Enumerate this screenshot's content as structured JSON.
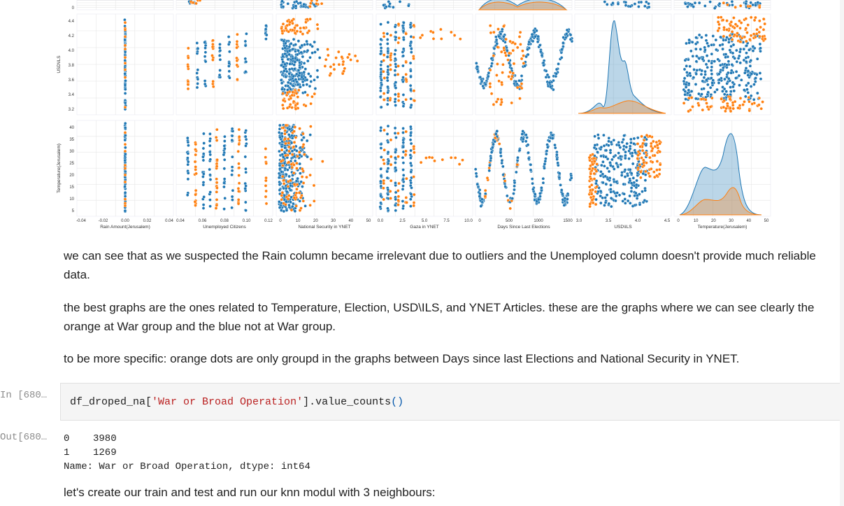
{
  "chart_data": {
    "type": "scatter",
    "description_kind": "pairplot",
    "colors": {
      "not_war": "#1f77b4",
      "war": "#ff7f0e"
    },
    "x_axes": [
      {
        "label": "Rain Amount(Jerusalem)",
        "ticks": [
          "-0.04",
          "-0.02",
          "0.00",
          "0.02",
          "0.04"
        ]
      },
      {
        "label": "Unemployed Citizens",
        "ticks": [
          "0.04",
          "0.06",
          "0.08",
          "0.10",
          "0.12"
        ]
      },
      {
        "label": "National Security in YNET",
        "ticks": [
          "0",
          "10",
          "20",
          "30",
          "40",
          "50"
        ]
      },
      {
        "label": "Gaza in YNET",
        "ticks": [
          "0.0",
          "2.5",
          "5.0",
          "7.5",
          "10.0"
        ]
      },
      {
        "label": "Days Since Last Elections",
        "ticks": [
          "0",
          "500",
          "1000",
          "1500"
        ]
      },
      {
        "label": "USD\\ILS",
        "ticks": [
          "3.0",
          "3.5",
          "4.0",
          "4.5"
        ]
      },
      {
        "label": "Temperature(Jerusalem)",
        "ticks": [
          "0",
          "10",
          "20",
          "30",
          "40",
          "50"
        ]
      }
    ],
    "y_axes": [
      {
        "label": "",
        "ticks": [
          "0"
        ]
      },
      {
        "label": "USD\\ILS",
        "ticks": [
          "4.4",
          "4.2",
          "4.0",
          "3.8",
          "3.6",
          "3.4",
          "3.2"
        ]
      },
      {
        "label": "Temperature(Jerusalem)",
        "ticks": [
          "40",
          "35",
          "30",
          "25",
          "20",
          "15",
          "10",
          "5"
        ]
      }
    ]
  },
  "markdown": {
    "p1": "we can see that as we suspected the Rain column became irrelevant due to outliers and the Unemployed column doesn't provide much reliable data.",
    "p2": "the best graphs are the ones related to Temperature, Election, USD\\ILS, and YNET Articles. these are the graphs where we can see clearly the orange at War group and the blue not at War group.",
    "p3": "to be more specific: orange dots are only groupd in the graphs between Days since last Elections and National Security in YNET.",
    "p4": "let's create our train and test and run our knn modul with 3 neighbours:"
  },
  "cell_in": {
    "prompt": "In [680…",
    "code_fn": "df_droped_na[",
    "code_str": "'War or Broad Operation'",
    "code_end": "].value_counts",
    "code_paren": "()"
  },
  "cell_out": {
    "prompt": "Out[680…",
    "text": "0    3980\n1    1269\nName: War or Broad Operation, dtype: int64"
  }
}
